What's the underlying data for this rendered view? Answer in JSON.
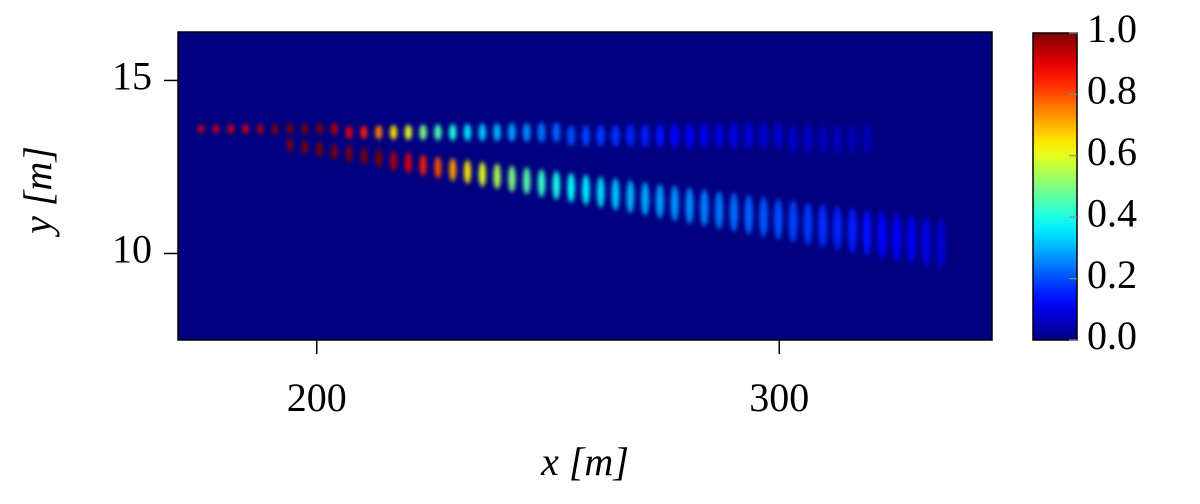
{
  "chart_data": {
    "type": "heatmap",
    "xlabel": "x [m]",
    "ylabel": "y [m]",
    "xlim": [
      170,
      346
    ],
    "ylim": [
      7.5,
      16.4
    ],
    "xticks": [
      200,
      300
    ],
    "yticks": [
      10,
      15
    ],
    "colormap": "jet",
    "clim": [
      0,
      1
    ],
    "cticks": [
      {
        "value": 0,
        "label": "0.0"
      },
      0.2,
      0.4,
      0.6,
      0.8,
      {
        "value": 1,
        "label": "1.0"
      }
    ],
    "series": [
      {
        "x": [
          175.0,
          178.2,
          181.4,
          184.6,
          187.8,
          191.0,
          194.2,
          197.4,
          200.6,
          203.8,
          207.0,
          210.2,
          213.4,
          216.6,
          219.8,
          223.0,
          226.2,
          229.4,
          232.6,
          235.8,
          239.0,
          242.2,
          245.4,
          248.6,
          251.8,
          255.0,
          258.2,
          261.4,
          264.6,
          267.8,
          271.0,
          274.2,
          277.4,
          280.6,
          283.8,
          287.0,
          290.2,
          293.4,
          296.6,
          299.8,
          303.0,
          306.2,
          309.4,
          312.6,
          315.8,
          319.0
        ],
        "y": [
          13.6,
          13.6,
          13.6,
          13.6,
          13.6,
          13.6,
          13.6,
          13.6,
          13.6,
          13.6,
          13.5,
          13.5,
          13.5,
          13.5,
          13.5,
          13.5,
          13.5,
          13.5,
          13.5,
          13.5,
          13.5,
          13.5,
          13.5,
          13.5,
          13.5,
          13.4,
          13.4,
          13.4,
          13.4,
          13.4,
          13.4,
          13.4,
          13.4,
          13.4,
          13.4,
          13.4,
          13.4,
          13.4,
          13.4,
          13.4,
          13.3,
          13.3,
          13.3,
          13.3,
          13.3,
          13.3
        ],
        "values": [
          0.9,
          0.9,
          0.9,
          0.9,
          0.95,
          1.0,
          1.0,
          1.0,
          1.0,
          0.95,
          0.9,
          0.85,
          0.75,
          0.65,
          0.6,
          0.5,
          0.45,
          0.4,
          0.35,
          0.32,
          0.3,
          0.28,
          0.26,
          0.24,
          0.22,
          0.2,
          0.19,
          0.18,
          0.17,
          0.16,
          0.15,
          0.14,
          0.13,
          0.12,
          0.11,
          0.1,
          0.1,
          0.09,
          0.08,
          0.08,
          0.07,
          0.07,
          0.06,
          0.06,
          0.05,
          0.05
        ]
      },
      {
        "x": [
          194.2,
          197.4,
          200.6,
          203.8,
          207.0,
          210.2,
          213.4,
          216.6,
          219.8,
          223.0,
          226.2,
          229.4,
          232.6,
          235.8,
          239.0,
          242.2,
          245.4,
          248.6,
          251.8,
          255.0,
          258.2,
          261.4,
          264.6,
          267.8,
          271.0,
          274.2,
          277.4,
          280.6,
          283.8,
          287.0,
          290.2,
          293.4,
          296.6,
          299.8,
          303.0,
          306.2,
          309.4,
          312.6,
          315.8,
          319.0,
          322.2,
          325.4,
          328.6,
          331.8,
          335.0
        ],
        "y": [
          13.14,
          13.07,
          13.01,
          12.94,
          12.88,
          12.81,
          12.75,
          12.68,
          12.62,
          12.55,
          12.49,
          12.42,
          12.36,
          12.29,
          12.23,
          12.16,
          12.1,
          12.03,
          11.97,
          11.9,
          11.84,
          11.77,
          11.71,
          11.64,
          11.58,
          11.51,
          11.45,
          11.38,
          11.32,
          11.25,
          11.19,
          11.12,
          11.06,
          10.99,
          10.93,
          10.86,
          10.8,
          10.73,
          10.67,
          10.6,
          10.54,
          10.47,
          10.41,
          10.34,
          10.28
        ],
        "values": [
          1.0,
          1.0,
          1.0,
          1.0,
          1.0,
          1.0,
          1.0,
          0.95,
          0.9,
          0.85,
          0.8,
          0.72,
          0.65,
          0.6,
          0.55,
          0.5,
          0.46,
          0.43,
          0.4,
          0.38,
          0.36,
          0.34,
          0.32,
          0.3,
          0.29,
          0.28,
          0.27,
          0.26,
          0.25,
          0.24,
          0.23,
          0.22,
          0.21,
          0.2,
          0.19,
          0.18,
          0.17,
          0.16,
          0.15,
          0.14,
          0.13,
          0.12,
          0.11,
          0.1,
          0.08
        ]
      }
    ]
  }
}
